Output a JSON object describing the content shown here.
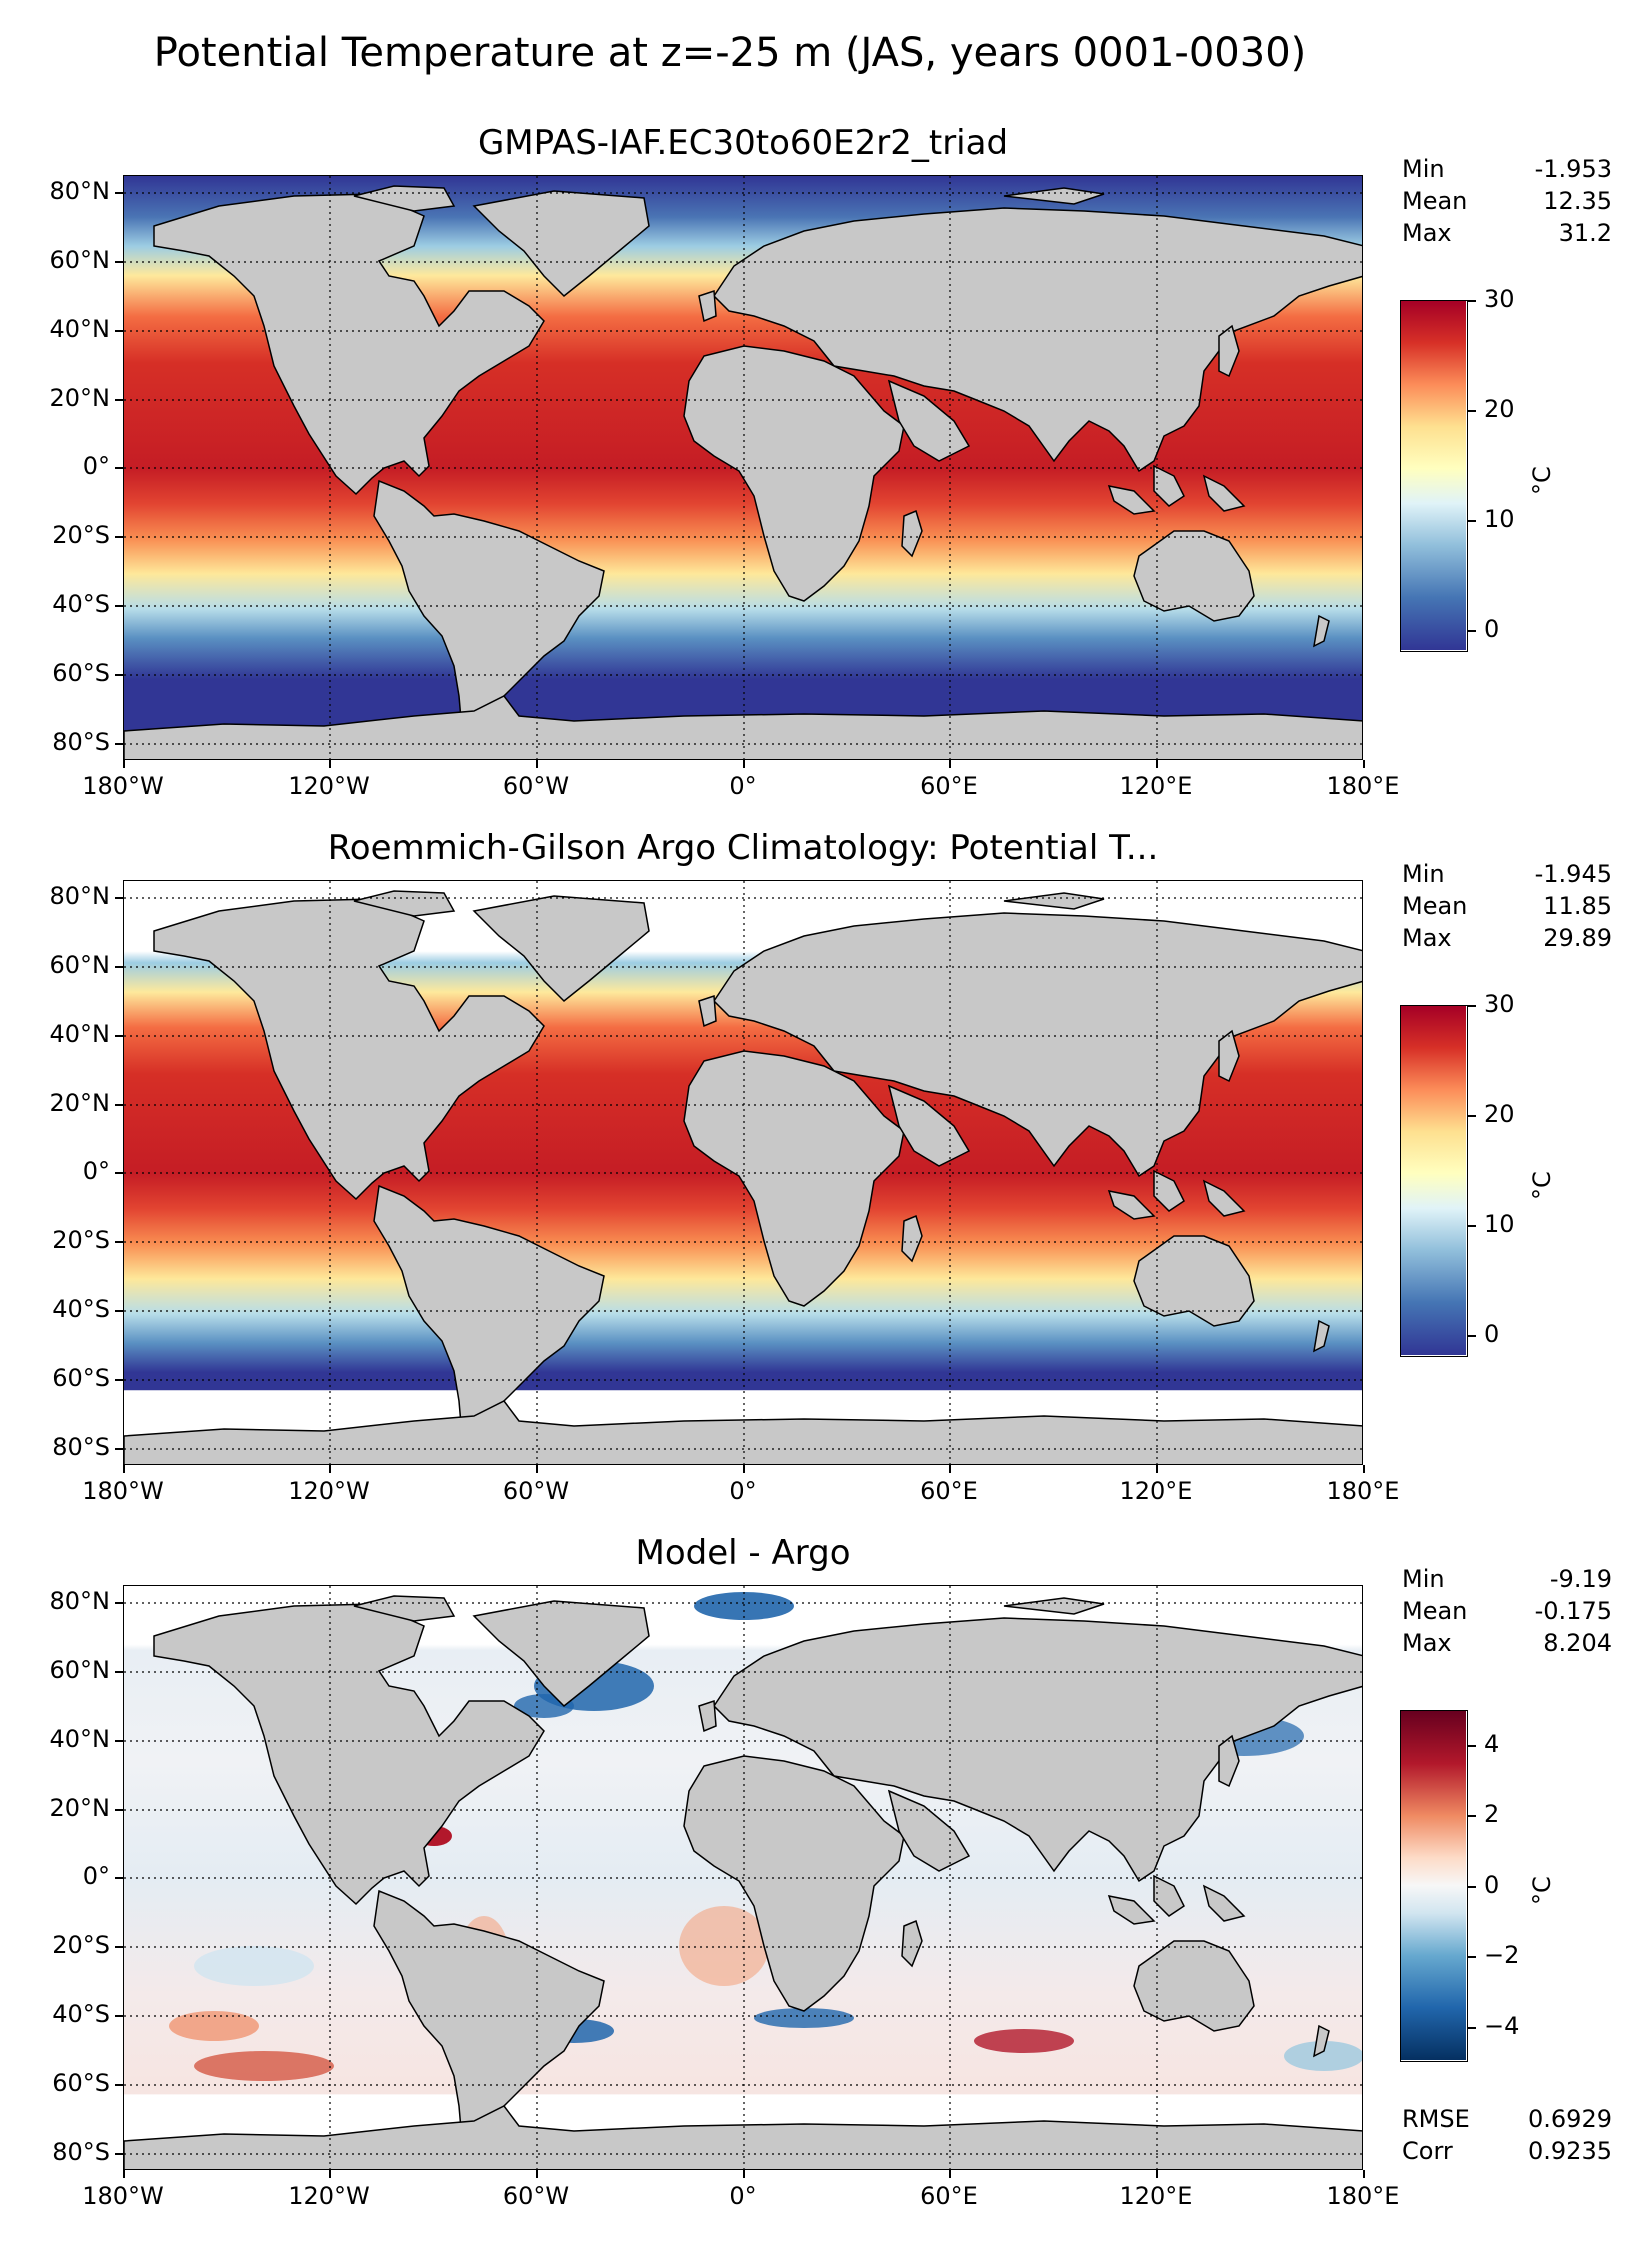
{
  "suptitle": "Potential Temperature at z=-25 m (JAS, years 0001-0030)",
  "lat_labels": [
    "80°N",
    "60°N",
    "40°N",
    "20°N",
    "0°",
    "20°S",
    "40°S",
    "60°S",
    "80°S"
  ],
  "lon_labels": [
    "180°W",
    "120°W",
    "60°W",
    "0°",
    "60°E",
    "120°E",
    "180°E"
  ],
  "panels": [
    {
      "title": "GMPAS-IAF.EC30to60E2r2_triad",
      "stats": [
        {
          "label": "Min",
          "value": "-1.953"
        },
        {
          "label": "Mean",
          "value": "12.35"
        },
        {
          "label": "Max",
          "value": "31.2"
        }
      ],
      "colorbar": {
        "ticks": [
          "30",
          "20",
          "10",
          "0"
        ],
        "unit": "°C",
        "colormap": "RdYlBu_r",
        "range": [
          -2,
          30
        ]
      }
    },
    {
      "title": "Roemmich-Gilson Argo Climatology: Potential T...",
      "stats": [
        {
          "label": "Min",
          "value": "-1.945"
        },
        {
          "label": "Mean",
          "value": "11.85"
        },
        {
          "label": "Max",
          "value": "29.89"
        }
      ],
      "colorbar": {
        "ticks": [
          "30",
          "20",
          "10",
          "0"
        ],
        "unit": "°C",
        "colormap": "RdYlBu_r",
        "range": [
          -2,
          30
        ]
      }
    },
    {
      "title": "Model - Argo",
      "stats": [
        {
          "label": "Min",
          "value": "-9.19"
        },
        {
          "label": "Mean",
          "value": "-0.175"
        },
        {
          "label": "Max",
          "value": "8.204"
        }
      ],
      "colorbar": {
        "ticks": [
          "4",
          "2",
          "0",
          "−2",
          "−4"
        ],
        "unit": "°C",
        "colormap": "RdBu_r",
        "range": [
          -5,
          5
        ]
      },
      "extra": [
        {
          "label": "RMSE",
          "value": "0.6929"
        },
        {
          "label": "Corr",
          "value": "0.9235"
        }
      ]
    }
  ],
  "colors": {
    "land": "#c8c8c8",
    "missing": "#ffffff"
  }
}
